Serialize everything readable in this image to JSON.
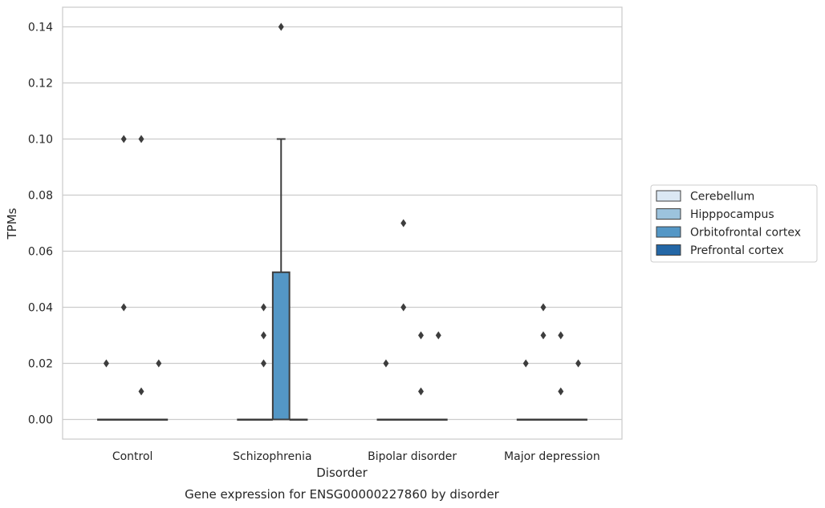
{
  "chart_data": {
    "type": "box",
    "caption": "Gene expression for ENSG00000227860 by disorder",
    "xlabel": "Disorder",
    "ylabel": "TPMs",
    "ylim": [
      -0.007,
      0.147
    ],
    "yticks": [
      0.0,
      0.02,
      0.04,
      0.06,
      0.08,
      0.1,
      0.12,
      0.14
    ],
    "ytick_labels": [
      "0.00",
      "0.02",
      "0.04",
      "0.06",
      "0.08",
      "0.10",
      "0.12",
      "0.14"
    ],
    "grid": "horizontal",
    "legend_position": "right",
    "categories": [
      "Control",
      "Schizophrenia",
      "Bipolar disorder",
      "Major depression"
    ],
    "series": [
      {
        "name": "Cerebellum",
        "color": "#dbe8f4"
      },
      {
        "name": "Hipppocampus",
        "color": "#9cc3dd"
      },
      {
        "name": "Orbitofrontal cortex",
        "color": "#5497c6"
      },
      {
        "name": "Prefrontal cortex",
        "color": "#2467a6"
      }
    ],
    "boxes": [
      {
        "category": "Control",
        "series": "Cerebellum",
        "q1": 0,
        "median": 0,
        "q3": 0,
        "whisker_low": 0,
        "whisker_high": 0,
        "outliers": [
          0.02
        ]
      },
      {
        "category": "Control",
        "series": "Hipppocampus",
        "q1": 0,
        "median": 0,
        "q3": 0,
        "whisker_low": 0,
        "whisker_high": 0,
        "outliers": [
          0.1,
          0.04
        ]
      },
      {
        "category": "Control",
        "series": "Orbitofrontal cortex",
        "q1": 0,
        "median": 0,
        "q3": 0,
        "whisker_low": 0,
        "whisker_high": 0,
        "outliers": [
          0.1,
          0.01
        ]
      },
      {
        "category": "Control",
        "series": "Prefrontal cortex",
        "q1": 0,
        "median": 0,
        "q3": 0,
        "whisker_low": 0,
        "whisker_high": 0,
        "outliers": [
          0.02
        ]
      },
      {
        "category": "Schizophrenia",
        "series": "Cerebellum",
        "q1": 0,
        "median": 0,
        "q3": 0,
        "whisker_low": 0,
        "whisker_high": 0,
        "outliers": []
      },
      {
        "category": "Schizophrenia",
        "series": "Hipppocampus",
        "q1": 0,
        "median": 0,
        "q3": 0,
        "whisker_low": 0,
        "whisker_high": 0,
        "outliers": [
          0.04,
          0.03,
          0.02
        ]
      },
      {
        "category": "Schizophrenia",
        "series": "Orbitofrontal cortex",
        "q1": 0,
        "median": 0,
        "q3": 0.0525,
        "whisker_low": 0,
        "whisker_high": 0.1,
        "outliers": [
          0.14
        ]
      },
      {
        "category": "Schizophrenia",
        "series": "Prefrontal cortex",
        "q1": 0,
        "median": 0,
        "q3": 0,
        "whisker_low": 0,
        "whisker_high": 0,
        "outliers": []
      },
      {
        "category": "Bipolar disorder",
        "series": "Cerebellum",
        "q1": 0,
        "median": 0,
        "q3": 0,
        "whisker_low": 0,
        "whisker_high": 0,
        "outliers": [
          0.02
        ]
      },
      {
        "category": "Bipolar disorder",
        "series": "Hipppocampus",
        "q1": 0,
        "median": 0,
        "q3": 0,
        "whisker_low": 0,
        "whisker_high": 0,
        "outliers": [
          0.07,
          0.04
        ]
      },
      {
        "category": "Bipolar disorder",
        "series": "Orbitofrontal cortex",
        "q1": 0,
        "median": 0,
        "q3": 0,
        "whisker_low": 0,
        "whisker_high": 0,
        "outliers": [
          0.03,
          0.01
        ]
      },
      {
        "category": "Bipolar disorder",
        "series": "Prefrontal cortex",
        "q1": 0,
        "median": 0,
        "q3": 0,
        "whisker_low": 0,
        "whisker_high": 0,
        "outliers": [
          0.03
        ]
      },
      {
        "category": "Major depression",
        "series": "Cerebellum",
        "q1": 0,
        "median": 0,
        "q3": 0,
        "whisker_low": 0,
        "whisker_high": 0,
        "outliers": [
          0.02
        ]
      },
      {
        "category": "Major depression",
        "series": "Hipppocampus",
        "q1": 0,
        "median": 0,
        "q3": 0,
        "whisker_low": 0,
        "whisker_high": 0,
        "outliers": [
          0.04,
          0.03
        ]
      },
      {
        "category": "Major depression",
        "series": "Orbitofrontal cortex",
        "q1": 0,
        "median": 0,
        "q3": 0,
        "whisker_low": 0,
        "whisker_high": 0,
        "outliers": [
          0.03,
          0.01
        ]
      },
      {
        "category": "Major depression",
        "series": "Prefrontal cortex",
        "q1": 0,
        "median": 0,
        "q3": 0,
        "whisker_low": 0,
        "whisker_high": 0,
        "outliers": [
          0.02
        ]
      }
    ]
  }
}
